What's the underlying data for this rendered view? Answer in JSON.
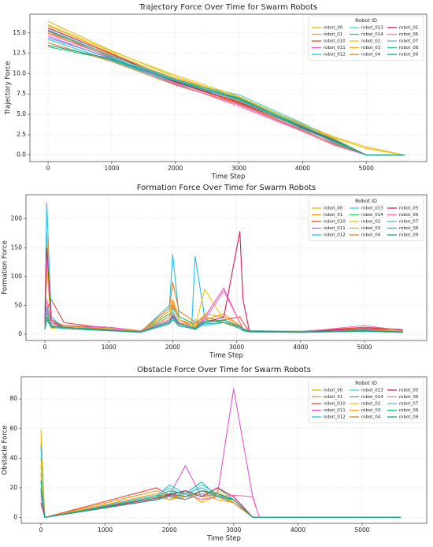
{
  "chart_data": [
    {
      "type": "line",
      "title": "Trajectory Force Over Time for Swarm Robots",
      "xlabel": "Time Step",
      "ylabel": "Trajectory Force",
      "legend_title": "Robot ID",
      "legend": "upper right",
      "grid": true,
      "x": [
        0,
        1000,
        2000,
        3000,
        4000,
        4500,
        5000,
        5600
      ],
      "xlim": [
        -285,
        5950
      ],
      "ylim": [
        -0.8,
        17.3
      ],
      "xticks": [
        0,
        1000,
        2000,
        3000,
        4000,
        5000
      ],
      "yticks": [
        {
          "value": 0,
          "label": "0.0"
        },
        2.5,
        {
          "value": 5,
          "label": "5.0"
        },
        7.5,
        {
          "value": 10,
          "label": "10.0"
        },
        12.5,
        {
          "value": 15,
          "label": "15.0"
        }
      ],
      "series": [
        {
          "name": "robot_00",
          "color": "#e6b800",
          "values": [
            16.4,
            12.8,
            9.6,
            7.0,
            3.8,
            2.2,
            1.0,
            0
          ]
        },
        {
          "name": "robot_01",
          "color": "#f39c12",
          "values": [
            15.9,
            12.5,
            9.3,
            6.6,
            3.5,
            1.9,
            0,
            0
          ]
        },
        {
          "name": "robot_010",
          "color": "#e74c3c",
          "values": [
            15.2,
            11.9,
            8.9,
            6.4,
            3.3,
            1.7,
            0,
            0
          ]
        },
        {
          "name": "robot_011",
          "color": "#e056c9",
          "values": [
            14.6,
            11.8,
            8.7,
            6.2,
            3.0,
            1.4,
            0,
            0
          ]
        },
        {
          "name": "robot_012",
          "color": "#1ec0e8",
          "values": [
            14.2,
            11.6,
            8.8,
            6.9,
            3.6,
            1.8,
            0,
            0
          ]
        },
        {
          "name": "robot_013",
          "color": "#3ecfe0",
          "values": [
            15.4,
            12.2,
            9.1,
            7.4,
            3.9,
            2.0,
            0,
            0
          ]
        },
        {
          "name": "robot_014",
          "color": "#2ecc71",
          "values": [
            13.3,
            11.7,
            9.0,
            6.8,
            3.4,
            1.5,
            0,
            0
          ]
        },
        {
          "name": "robot_02",
          "color": "#f1c40f",
          "values": [
            16.0,
            12.7,
            9.8,
            7.2,
            3.7,
            2.1,
            0.8,
            0
          ]
        },
        {
          "name": "robot_03",
          "color": "#f5a623",
          "values": [
            15.0,
            12.3,
            9.4,
            7.1,
            3.7,
            2.0,
            0,
            0
          ]
        },
        {
          "name": "robot_04",
          "color": "#e67e22",
          "values": [
            13.8,
            11.5,
            8.6,
            6.3,
            3.1,
            1.3,
            0,
            0
          ]
        },
        {
          "name": "robot_05",
          "color": "#d81b60",
          "values": [
            15.6,
            12.4,
            9.0,
            6.5,
            3.4,
            1.8,
            0,
            0
          ]
        },
        {
          "name": "robot_06",
          "color": "#ff69b4",
          "values": [
            14.9,
            12.0,
            8.8,
            6.0,
            2.9,
            1.2,
            0,
            0
          ]
        },
        {
          "name": "robot_07",
          "color": "#5dade2",
          "values": [
            14.4,
            11.9,
            9.2,
            6.7,
            3.2,
            1.6,
            0,
            0
          ]
        },
        {
          "name": "robot_08",
          "color": "#1abc9c",
          "values": [
            15.3,
            12.1,
            9.3,
            7.0,
            3.5,
            1.9,
            0,
            0
          ]
        },
        {
          "name": "robot_09",
          "color": "#16a085",
          "values": [
            13.5,
            11.8,
            9.1,
            6.9,
            3.3,
            1.7,
            0,
            0
          ]
        }
      ]
    },
    {
      "type": "line",
      "title": "Formation Force Over Time for Swarm Robots",
      "xlabel": "Time Step",
      "ylabel": "Formation Force",
      "legend_title": "Robot ID",
      "legend": "upper right",
      "grid": true,
      "x": [
        0,
        30,
        100,
        300,
        1000,
        1500,
        1950,
        2000,
        2100,
        2300,
        2350,
        2500,
        2800,
        3050,
        3100,
        3200,
        4000,
        5000,
        5600
      ],
      "xlim": [
        -295,
        5973
      ],
      "ylim": [
        -11,
        242
      ],
      "xticks": [
        0,
        1000,
        2000,
        3000,
        4000,
        5000
      ],
      "yticks": [
        0,
        50,
        100,
        150,
        200
      ],
      "series": [
        {
          "name": "robot_00",
          "color": "#e6b800",
          "values": [
            30,
            120,
            15,
            10,
            8,
            5,
            20,
            40,
            15,
            10,
            12,
            30,
            20,
            10,
            8,
            5,
            5,
            8,
            5
          ]
        },
        {
          "name": "robot_01",
          "color": "#f39c12",
          "values": [
            20,
            175,
            25,
            15,
            10,
            5,
            40,
            60,
            30,
            20,
            15,
            25,
            35,
            15,
            10,
            5,
            4,
            10,
            6
          ]
        },
        {
          "name": "robot_010",
          "color": "#e74c3c",
          "values": [
            15,
            40,
            60,
            20,
            10,
            5,
            30,
            50,
            25,
            15,
            20,
            20,
            25,
            30,
            20,
            5,
            5,
            12,
            8
          ]
        },
        {
          "name": "robot_011",
          "color": "#e056c9",
          "values": [
            10,
            30,
            20,
            15,
            12,
            6,
            25,
            35,
            20,
            15,
            10,
            30,
            80,
            20,
            10,
            5,
            4,
            8,
            5
          ]
        },
        {
          "name": "robot_012",
          "color": "#1ec0e8",
          "values": [
            25,
            228,
            30,
            10,
            8,
            4,
            50,
            138,
            30,
            20,
            135,
            30,
            20,
            15,
            10,
            5,
            3,
            6,
            4
          ]
        },
        {
          "name": "robot_013",
          "color": "#3ecfe0",
          "values": [
            10,
            50,
            15,
            10,
            6,
            4,
            30,
            40,
            20,
            10,
            25,
            15,
            20,
            10,
            6,
            4,
            3,
            5,
            3
          ]
        },
        {
          "name": "robot_014",
          "color": "#2ecc71",
          "values": [
            12,
            45,
            20,
            12,
            8,
            5,
            35,
            45,
            30,
            20,
            15,
            25,
            20,
            15,
            10,
            6,
            5,
            7,
            4
          ]
        },
        {
          "name": "robot_02",
          "color": "#f1c40f",
          "values": [
            8,
            30,
            10,
            12,
            6,
            4,
            25,
            30,
            20,
            15,
            12,
            78,
            25,
            10,
            8,
            5,
            4,
            6,
            5
          ]
        },
        {
          "name": "robot_03",
          "color": "#f5a623",
          "values": [
            14,
            35,
            18,
            14,
            10,
            6,
            30,
            55,
            25,
            18,
            14,
            35,
            30,
            15,
            10,
            6,
            5,
            9,
            6
          ]
        },
        {
          "name": "robot_04",
          "color": "#e67e22",
          "values": [
            10,
            40,
            12,
            15,
            8,
            5,
            45,
            90,
            40,
            25,
            20,
            30,
            20,
            12,
            8,
            5,
            4,
            6,
            4
          ]
        },
        {
          "name": "robot_05",
          "color": "#d81b60",
          "values": [
            20,
            150,
            25,
            10,
            6,
            5,
            20,
            30,
            15,
            10,
            8,
            20,
            30,
            178,
            60,
            5,
            4,
            10,
            8
          ]
        },
        {
          "name": "robot_06",
          "color": "#ff69b4",
          "values": [
            12,
            60,
            20,
            10,
            8,
            5,
            25,
            35,
            20,
            12,
            10,
            25,
            75,
            20,
            10,
            5,
            4,
            15,
            6
          ]
        },
        {
          "name": "robot_07",
          "color": "#5dade2",
          "values": [
            10,
            40,
            15,
            10,
            6,
            4,
            20,
            28,
            15,
            10,
            8,
            20,
            25,
            12,
            8,
            4,
            3,
            5,
            3
          ]
        },
        {
          "name": "robot_08",
          "color": "#1abc9c",
          "values": [
            8,
            25,
            12,
            10,
            6,
            3,
            18,
            25,
            14,
            10,
            8,
            18,
            20,
            10,
            6,
            4,
            3,
            5,
            3
          ]
        },
        {
          "name": "robot_09",
          "color": "#16a085",
          "values": [
            10,
            30,
            14,
            12,
            7,
            4,
            22,
            32,
            18,
            12,
            10,
            22,
            24,
            14,
            8,
            5,
            4,
            6,
            4
          ]
        }
      ]
    },
    {
      "type": "line",
      "title": "Obstacle Force Over Time for Swarm Robots",
      "xlabel": "Time Step",
      "ylabel": "Obstacle Force",
      "legend_title": "Robot ID",
      "legend": "upper right",
      "grid": true,
      "x": [
        0,
        60,
        1800,
        2000,
        2250,
        2500,
        2750,
        3000,
        3300,
        3400,
        5600
      ],
      "xlim": [
        -306,
        6005
      ],
      "ylim": [
        -4,
        95
      ],
      "xticks": [
        0,
        1000,
        2000,
        3000,
        4000,
        5000
      ],
      "yticks": [
        0,
        20,
        40,
        60,
        80
      ],
      "series": [
        {
          "name": "robot_00",
          "color": "#e6b800",
          "values": [
            59,
            0,
            15,
            12,
            18,
            10,
            15,
            12,
            0,
            0,
            0
          ]
        },
        {
          "name": "robot_01",
          "color": "#f39c12",
          "values": [
            50,
            0,
            18,
            14,
            12,
            16,
            14,
            10,
            0,
            0,
            0
          ]
        },
        {
          "name": "robot_010",
          "color": "#e74c3c",
          "values": [
            30,
            0,
            20,
            15,
            12,
            18,
            16,
            12,
            0,
            0,
            0
          ]
        },
        {
          "name": "robot_011",
          "color": "#e056c9",
          "values": [
            20,
            0,
            12,
            15,
            35,
            14,
            16,
            87,
            13,
            0,
            0
          ]
        },
        {
          "name": "robot_012",
          "color": "#1ec0e8",
          "values": [
            48,
            0,
            14,
            22,
            16,
            20,
            14,
            12,
            0,
            0,
            0
          ]
        },
        {
          "name": "robot_013",
          "color": "#3ecfe0",
          "values": [
            35,
            0,
            15,
            20,
            14,
            22,
            16,
            10,
            0,
            0,
            0
          ]
        },
        {
          "name": "robot_014",
          "color": "#2ecc71",
          "values": [
            25,
            0,
            12,
            16,
            18,
            14,
            20,
            12,
            0,
            0,
            0
          ]
        },
        {
          "name": "robot_02",
          "color": "#f1c40f",
          "values": [
            40,
            0,
            14,
            12,
            16,
            12,
            18,
            10,
            0,
            0,
            0
          ]
        },
        {
          "name": "robot_03",
          "color": "#f5a623",
          "values": [
            30,
            0,
            16,
            12,
            14,
            16,
            12,
            10,
            0,
            0,
            0
          ]
        },
        {
          "name": "robot_04",
          "color": "#e67e22",
          "values": [
            20,
            0,
            14,
            16,
            12,
            18,
            14,
            10,
            0,
            0,
            0
          ]
        },
        {
          "name": "robot_05",
          "color": "#d81b60",
          "values": [
            10,
            0,
            13,
            15,
            18,
            14,
            20,
            14,
            0,
            0,
            0
          ]
        },
        {
          "name": "robot_06",
          "color": "#ff69b4",
          "values": [
            15,
            0,
            12,
            14,
            16,
            12,
            14,
            15,
            14,
            0,
            0
          ]
        },
        {
          "name": "robot_07",
          "color": "#5dade2",
          "values": [
            20,
            0,
            12,
            14,
            12,
            16,
            14,
            12,
            0,
            0,
            0
          ]
        },
        {
          "name": "robot_08",
          "color": "#1abc9c",
          "values": [
            25,
            0,
            14,
            18,
            16,
            24,
            14,
            12,
            0,
            0,
            0
          ]
        },
        {
          "name": "robot_09",
          "color": "#16a085",
          "values": [
            18,
            0,
            12,
            16,
            14,
            18,
            16,
            12,
            0,
            0,
            0
          ]
        }
      ]
    }
  ]
}
